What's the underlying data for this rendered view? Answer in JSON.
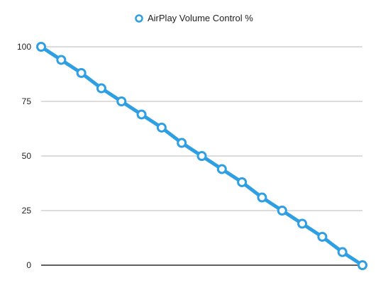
{
  "chart_data": {
    "type": "line",
    "title": "",
    "xlabel": "",
    "ylabel": "",
    "ylim": [
      0,
      100
    ],
    "yticks": [
      0,
      25,
      50,
      75,
      100
    ],
    "grid": true,
    "legend_position": "top-center",
    "x": [
      1,
      2,
      3,
      4,
      5,
      6,
      7,
      8,
      9,
      10,
      11,
      12,
      13,
      14,
      15,
      16,
      17
    ],
    "series": [
      {
        "name": "AirPlay Volume Control %",
        "color": "#2f9fe4",
        "values": [
          100,
          94,
          88,
          81,
          75,
          69,
          63,
          56,
          50,
          44,
          38,
          31,
          25,
          19,
          13,
          6,
          0
        ]
      }
    ]
  }
}
